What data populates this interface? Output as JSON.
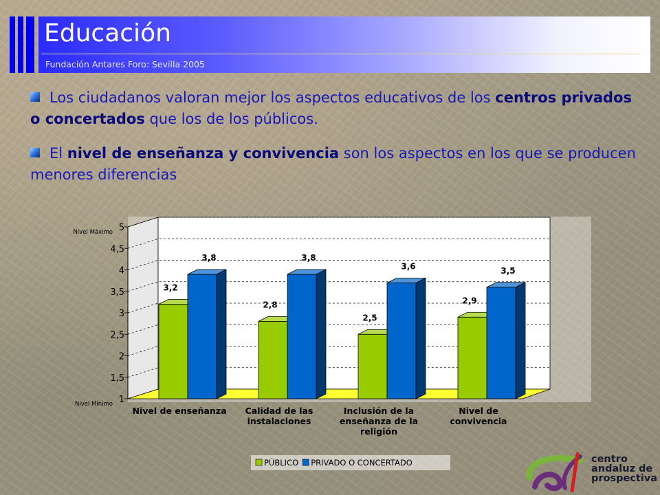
{
  "header": {
    "title": "Educación",
    "subtitle": "Fundación Antares Foro: Sevilla 2005"
  },
  "bullets": [
    {
      "parts": [
        {
          "text": "Los ciudadanos valoran mejor los aspectos educativos de los ",
          "bold": false
        },
        {
          "text": "centros privados o concertados",
          "bold": true
        },
        {
          "text": " que los de los públicos.",
          "bold": false
        }
      ]
    },
    {
      "parts": [
        {
          "text": "El ",
          "bold": false
        },
        {
          "text": "nivel de enseñanza y convivencia",
          "bold": true
        },
        {
          "text": " son los aspectos en los que se producen menores diferencias",
          "bold": false
        }
      ]
    }
  ],
  "logo": {
    "lines": [
      "centro",
      "andaluz de",
      "prospectiva"
    ],
    "colors": {
      "green": "#7ab43c",
      "purple": "#6a2d7a",
      "red": "#d42020"
    }
  },
  "chart_data": {
    "type": "bar",
    "categories": [
      [
        "Nivel de enseñanza"
      ],
      [
        "Calidad de las",
        "instalaciones"
      ],
      [
        "Inclusión de la",
        "enseñanza de la",
        "religión"
      ],
      [
        "Nivel de",
        "convivencia"
      ]
    ],
    "series": [
      {
        "name": "PÚBLICO",
        "values": [
          3.2,
          2.8,
          2.5,
          2.9
        ],
        "labels": [
          "3,2",
          "2,8",
          "2,5",
          "2,9"
        ],
        "color": "#99cc00"
      },
      {
        "name": "PRIVADO O CONCERTADO",
        "values": [
          3.8,
          3.8,
          3.6,
          3.5
        ],
        "labels": [
          "3,8",
          "3,8",
          "3,6",
          "3,5"
        ],
        "color": "#0066cc"
      }
    ],
    "ylim": [
      1,
      5
    ],
    "yticks": [
      {
        "value": 1,
        "label": "1"
      },
      {
        "value": 1.5,
        "label": "1,5"
      },
      {
        "value": 2,
        "label": "2"
      },
      {
        "value": 2.5,
        "label": "2,5"
      },
      {
        "value": 3,
        "label": "3"
      },
      {
        "value": 3.5,
        "label": "3,5"
      },
      {
        "value": 4,
        "label": "4"
      },
      {
        "value": 4.5,
        "label": "4,5"
      },
      {
        "value": 5,
        "label": "5"
      }
    ],
    "y_annotations": [
      {
        "value": 5,
        "label": "Nivel Máximo"
      },
      {
        "value": 1,
        "label": "Nivel Mínimo"
      }
    ],
    "grid": true,
    "legend": "bottom",
    "colors": {
      "floor": "#ffff33",
      "plot_bg": "#ffffff"
    }
  }
}
